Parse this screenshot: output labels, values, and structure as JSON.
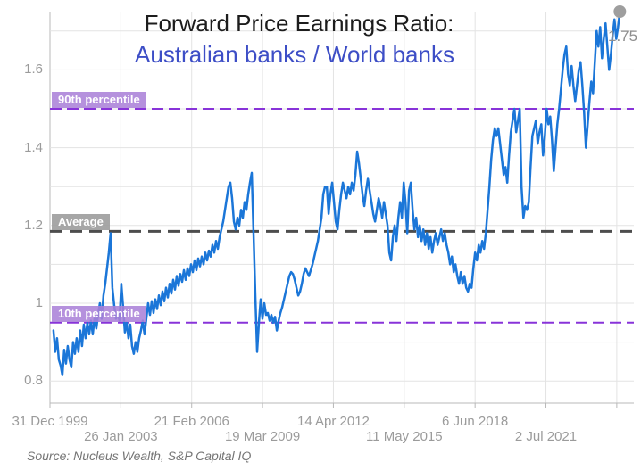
{
  "chart": {
    "title": "Forward Price Earnings Ratio:",
    "subtitle": "Australian banks / World banks",
    "source": "Source: Nucleus Wealth, S&P Capital IQ",
    "last_value_label": "1.75",
    "reference_lines": [
      {
        "label": "90th percentile",
        "value": 1.5,
        "style": "percentile"
      },
      {
        "label": "Average",
        "value": 1.185,
        "style": "average"
      },
      {
        "label": "10th percentile",
        "value": 0.95,
        "style": "percentile"
      }
    ],
    "colors": {
      "line": "#1b76d8",
      "marker": "#9e9e9e",
      "percentile_line": "#8833d9",
      "percentile_badge": "#ab82d8",
      "average_line": "#4d4d4d",
      "average_badge": "#9e9e9e",
      "grid": "#e3e3e3",
      "axis": "#b8b8b8",
      "axis_text": "#9b9b9b",
      "title_text": "#1d1d1d",
      "subtitle_text": "#3d4ec6",
      "source_text": "#757575"
    }
  },
  "chart_data": {
    "type": "line",
    "title": "Forward Price Earnings Ratio:",
    "subtitle": "Australian banks / World banks",
    "xlabel": "",
    "ylabel": "",
    "grid": true,
    "ylim": [
      0.743,
      1.748
    ],
    "xlim_years": [
      1999.99,
      2025.32
    ],
    "y_ticks": [
      0.8,
      1,
      1.2,
      1.4,
      1.6
    ],
    "y_gridlines": [
      0.8,
      0.9,
      1.0,
      1.1,
      1.2,
      1.3,
      1.4,
      1.5,
      1.6,
      1.7
    ],
    "x_tick_labels": [
      "31 Dec 1999",
      "26 Jan 2003",
      "21 Feb 2006",
      "19 Mar 2009",
      "14 Apr 2012",
      "11 May 2015",
      "6 Jun 2018",
      "2 Jul 2021"
    ],
    "x_tick_interval_years": 3.073,
    "annotations": [
      {
        "label": "90th percentile",
        "value": 1.5
      },
      {
        "label": "Average",
        "value": 1.185
      },
      {
        "label": "10th percentile",
        "value": 0.95
      },
      {
        "label": "1.75",
        "type": "last-point-marker",
        "value": 1.75
      }
    ],
    "series": [
      {
        "name": "Australian banks / World banks",
        "x_start_year": 2000.15,
        "x_step_years": 0.0775,
        "values": [
          0.93,
          0.875,
          0.91,
          0.855,
          0.84,
          0.815,
          0.88,
          0.845,
          0.89,
          0.855,
          0.835,
          0.9,
          0.87,
          0.91,
          0.875,
          0.93,
          0.89,
          0.945,
          0.91,
          0.95,
          0.92,
          0.955,
          0.92,
          0.96,
          0.935,
          0.97,
          1.0,
          0.96,
          1.02,
          1.05,
          1.09,
          1.13,
          1.18,
          1.04,
          0.995,
          0.96,
          0.975,
          0.955,
          1.05,
          0.99,
          0.925,
          0.95,
          0.91,
          0.945,
          0.89,
          0.87,
          0.9,
          0.875,
          0.91,
          0.93,
          0.955,
          0.92,
          0.96,
          1.0,
          0.97,
          1.005,
          0.975,
          1.01,
          0.985,
          1.02,
          0.995,
          1.03,
          1.005,
          1.04,
          1.015,
          1.05,
          1.025,
          1.06,
          1.035,
          1.07,
          1.045,
          1.075,
          1.055,
          1.085,
          1.06,
          1.09,
          1.07,
          1.1,
          1.08,
          1.11,
          1.085,
          1.115,
          1.095,
          1.12,
          1.1,
          1.13,
          1.11,
          1.135,
          1.12,
          1.15,
          1.13,
          1.16,
          1.14,
          1.17,
          1.19,
          1.21,
          1.24,
          1.27,
          1.3,
          1.31,
          1.27,
          1.21,
          1.19,
          1.22,
          1.2,
          1.24,
          1.22,
          1.26,
          1.24,
          1.28,
          1.31,
          1.335,
          1.18,
          1.02,
          0.875,
          0.95,
          1.01,
          0.96,
          1.0,
          0.97,
          0.975,
          0.955,
          0.97,
          0.95,
          0.965,
          0.93,
          0.955,
          0.975,
          0.99,
          1.01,
          1.03,
          1.05,
          1.07,
          1.08,
          1.075,
          1.06,
          1.04,
          1.02,
          1.03,
          1.05,
          1.075,
          1.09,
          1.08,
          1.07,
          1.085,
          1.1,
          1.12,
          1.14,
          1.16,
          1.19,
          1.22,
          1.28,
          1.3,
          1.3,
          1.23,
          1.28,
          1.31,
          1.26,
          1.21,
          1.19,
          1.24,
          1.28,
          1.31,
          1.29,
          1.27,
          1.3,
          1.28,
          1.31,
          1.29,
          1.33,
          1.39,
          1.36,
          1.32,
          1.28,
          1.25,
          1.29,
          1.32,
          1.29,
          1.26,
          1.23,
          1.21,
          1.24,
          1.27,
          1.25,
          1.22,
          1.26,
          1.23,
          1.2,
          1.13,
          1.11,
          1.17,
          1.2,
          1.16,
          1.22,
          1.26,
          1.22,
          1.31,
          1.26,
          1.18,
          1.29,
          1.31,
          1.24,
          1.19,
          1.22,
          1.17,
          1.2,
          1.16,
          1.19,
          1.15,
          1.18,
          1.14,
          1.17,
          1.13,
          1.16,
          1.18,
          1.15,
          1.17,
          1.19,
          1.16,
          1.18,
          1.15,
          1.13,
          1.1,
          1.12,
          1.08,
          1.1,
          1.07,
          1.05,
          1.08,
          1.05,
          1.07,
          1.04,
          1.03,
          1.05,
          1.04,
          1.09,
          1.13,
          1.11,
          1.15,
          1.13,
          1.16,
          1.14,
          1.18,
          1.24,
          1.3,
          1.37,
          1.42,
          1.45,
          1.43,
          1.45,
          1.41,
          1.37,
          1.33,
          1.35,
          1.31,
          1.38,
          1.44,
          1.47,
          1.5,
          1.44,
          1.47,
          1.5,
          1.3,
          1.22,
          1.25,
          1.24,
          1.26,
          1.35,
          1.43,
          1.45,
          1.47,
          1.41,
          1.44,
          1.46,
          1.38,
          1.43,
          1.5,
          1.46,
          1.48,
          1.42,
          1.34,
          1.4,
          1.46,
          1.5,
          1.55,
          1.6,
          1.64,
          1.66,
          1.59,
          1.56,
          1.61,
          1.56,
          1.52,
          1.56,
          1.6,
          1.62,
          1.56,
          1.49,
          1.4,
          1.46,
          1.52,
          1.57,
          1.54,
          1.62,
          1.7,
          1.66,
          1.71,
          1.63,
          1.68,
          1.72,
          1.66,
          1.6,
          1.64,
          1.69,
          1.73,
          1.68,
          1.71,
          1.75
        ]
      }
    ]
  }
}
